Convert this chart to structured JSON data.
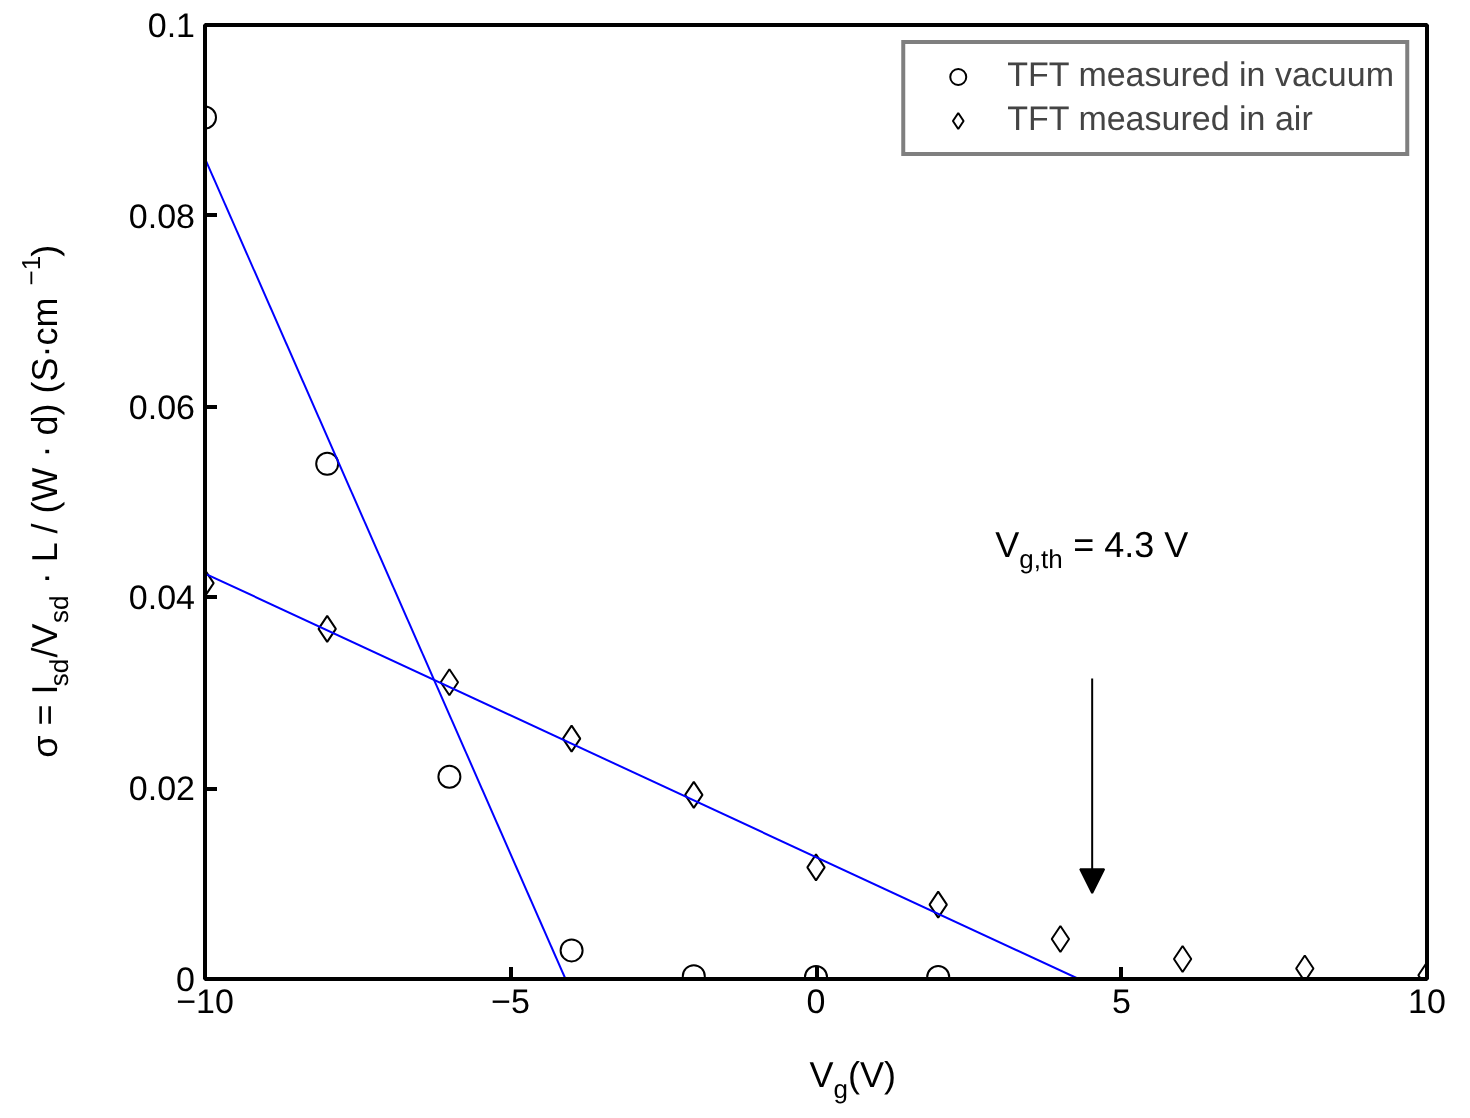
{
  "chart_data": {
    "type": "scatter",
    "xlabel": "V$_{g}$(V)",
    "ylabel": "σ = I$_{sd}$/V$_{sd}$ · L / (W · d)  (S·cm$^{−1}$)",
    "xlim": [
      -10,
      10
    ],
    "ylim": [
      0,
      0.1
    ],
    "xticks": [
      {
        "value": -10,
        "label": "−10"
      },
      {
        "value": -5,
        "label": "−5"
      },
      0,
      5,
      10
    ],
    "yticks": [
      0,
      0.02,
      0.04,
      0.06,
      0.08,
      0.1
    ],
    "grid": false,
    "legend": "top right",
    "series": [
      {
        "name": "TFT measured in vacuum",
        "marker": "circle",
        "color": "#000000",
        "x": [
          -10,
          -8,
          -6,
          -4,
          -2,
          0,
          2
        ],
        "values": [
          0.0903,
          0.054,
          0.0212,
          0.003,
          0.0003,
          0.0002,
          0.0002
        ]
      },
      {
        "name": "TFT measured in air",
        "marker": "diamond",
        "color": "#000000",
        "x": [
          -10,
          -8,
          -6,
          -4,
          -2,
          0,
          2,
          4,
          6,
          8,
          10
        ],
        "values": [
          0.0415,
          0.0367,
          0.0311,
          0.0252,
          0.0193,
          0.0117,
          0.0078,
          0.0042,
          0.0021,
          0.0011,
          0.0004
        ]
      },
      {
        "type": "line",
        "color": "#0000ff",
        "x": [
          -10,
          -4.1
        ],
        "values": [
          0.086,
          0
        ]
      },
      {
        "type": "line",
        "color": "#0000ff",
        "x": [
          -10,
          4.3
        ],
        "values": [
          0.0425,
          0
        ]
      }
    ],
    "annotations": [
      "V$_{g,th}$ = 4.3 V"
    ]
  }
}
